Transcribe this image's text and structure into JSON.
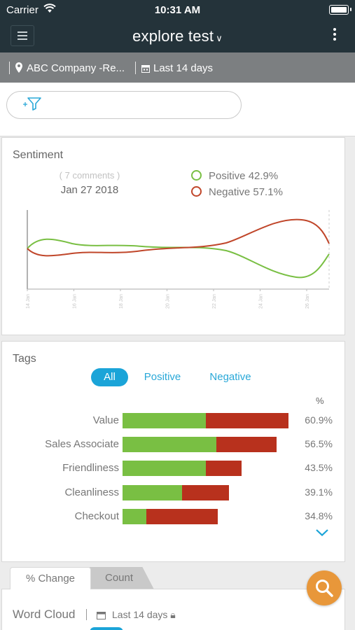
{
  "status_bar": {
    "carrier": "Carrier",
    "time": "10:31 AM"
  },
  "header": {
    "title": "explore test"
  },
  "subheader": {
    "location": "ABC Company -Re...",
    "date_range": "Last 14 days"
  },
  "sentiment": {
    "title": "Sentiment",
    "comments": "( 7 comments )",
    "date": "Jan 27 2018",
    "legend": [
      {
        "label": "Positive 42.9%",
        "color": "#79bf43"
      },
      {
        "label": "Negative 57.1%",
        "color": "#c0462a"
      }
    ],
    "x_ticks": [
      "14 Jan",
      "16 Jan",
      "18 Jan",
      "20 Jan",
      "22 Jan",
      "24 Jan",
      "26 Jan"
    ]
  },
  "tags": {
    "title": "Tags",
    "tabs": [
      "All",
      "Positive",
      "Negative"
    ],
    "active_tab": "All",
    "pct_header": "%",
    "rows": [
      {
        "label": "Value",
        "positive": 0.306,
        "negative": 0.303,
        "pct": "60.9%"
      },
      {
        "label": "Sales Associate",
        "positive": 0.343,
        "negative": 0.222,
        "pct": "56.5%"
      },
      {
        "label": "Friendliness",
        "positive": 0.306,
        "negative": 0.129,
        "pct": "43.5%"
      },
      {
        "label": "Cleanliness",
        "positive": 0.218,
        "negative": 0.173,
        "pct": "39.1%"
      },
      {
        "label": "Checkout",
        "positive": 0.087,
        "negative": 0.261,
        "pct": "34.8%"
      }
    ]
  },
  "bottom_tabs": {
    "items": [
      "% Change",
      "Count"
    ],
    "active": "% Change"
  },
  "word_cloud": {
    "title": "Word Cloud",
    "date_range": "Last 14 days"
  },
  "colors": {
    "header_bg": "#24333a",
    "subbar_bg": "#7c7f81",
    "positive": "#79bf43",
    "negative": "#b8311d",
    "accent": "#1ba4d8",
    "fab": "#e8973a"
  }
}
